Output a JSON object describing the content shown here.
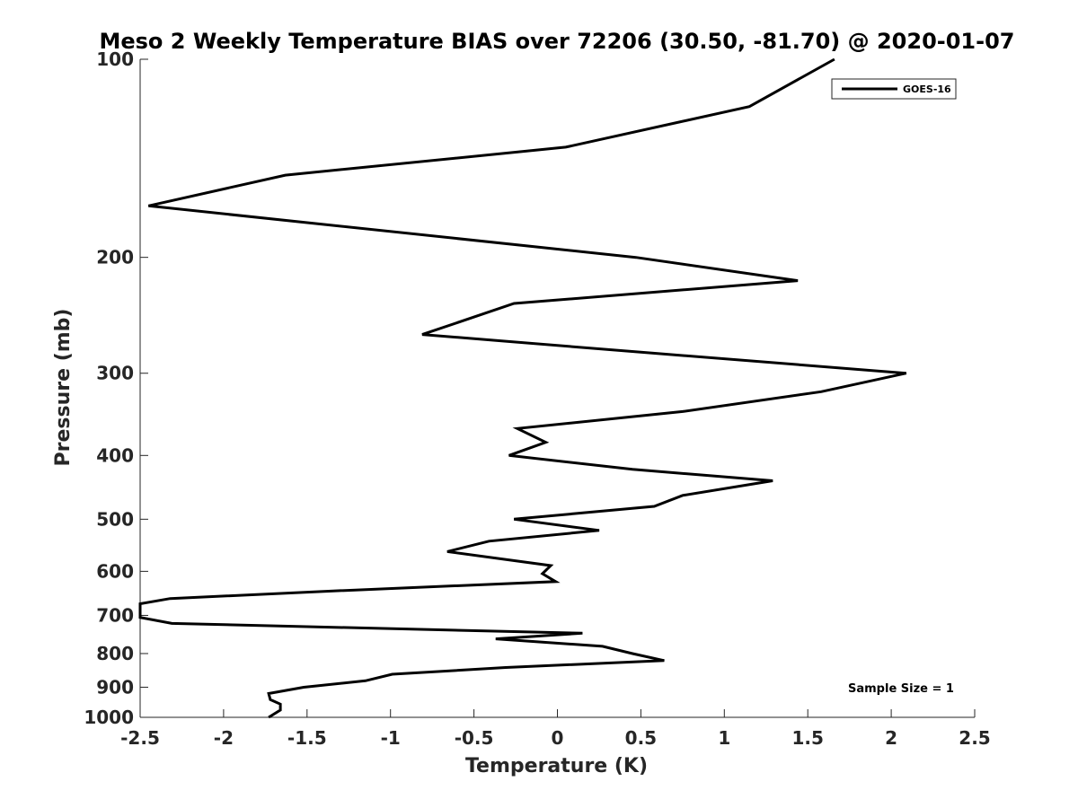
{
  "chart_data": {
    "type": "line",
    "title": "Meso 2 Weekly Temperature BIAS over 72206 (30.50, -81.70) @ 2020-01-07",
    "xlabel": "Temperature (K)",
    "ylabel": "Pressure (mb)",
    "xlim": [
      -2.5,
      2.5
    ],
    "ylim": [
      100,
      1000
    ],
    "y_scale": "log",
    "y_reversed": true,
    "x_ticks": [
      -2.5,
      -2,
      -1.5,
      -1,
      -0.5,
      0,
      0.5,
      1,
      1.5,
      2,
      2.5
    ],
    "x_tick_labels": [
      "-2.5",
      "-2",
      "-1.5",
      "-1",
      "-0.5",
      "0",
      "0.5",
      "1",
      "1.5",
      "2",
      "2.5"
    ],
    "y_ticks": [
      100,
      200,
      300,
      400,
      500,
      600,
      700,
      800,
      900,
      1000
    ],
    "y_tick_labels": [
      "100",
      "200",
      "300",
      "400",
      "500",
      "600",
      "700",
      "800",
      "900",
      "1000"
    ],
    "legend": {
      "location": "top-right",
      "entries": [
        "GOES-16"
      ]
    },
    "annotation": "Sample Size = 1",
    "series": [
      {
        "name": "GOES-16",
        "color": "#000000",
        "points": [
          {
            "t": 1.66,
            "p": 100
          },
          {
            "t": 1.15,
            "p": 118
          },
          {
            "t": 0.05,
            "p": 136
          },
          {
            "t": -1.63,
            "p": 150
          },
          {
            "t": -2.45,
            "p": 167
          },
          {
            "t": 0.47,
            "p": 200
          },
          {
            "t": 1.44,
            "p": 217
          },
          {
            "t": -0.26,
            "p": 235
          },
          {
            "t": -0.81,
            "p": 262
          },
          {
            "t": 0.6,
            "p": 280
          },
          {
            "t": 2.09,
            "p": 300
          },
          {
            "t": 1.58,
            "p": 320
          },
          {
            "t": 0.75,
            "p": 343
          },
          {
            "t": -0.24,
            "p": 364
          },
          {
            "t": -0.07,
            "p": 382
          },
          {
            "t": -0.29,
            "p": 400
          },
          {
            "t": 0.45,
            "p": 420
          },
          {
            "t": 1.29,
            "p": 437
          },
          {
            "t": 0.75,
            "p": 460
          },
          {
            "t": 0.58,
            "p": 478
          },
          {
            "t": -0.26,
            "p": 500
          },
          {
            "t": 0.25,
            "p": 520
          },
          {
            "t": -0.41,
            "p": 540
          },
          {
            "t": -0.66,
            "p": 560
          },
          {
            "t": -0.04,
            "p": 588
          },
          {
            "t": -0.09,
            "p": 605
          },
          {
            "t": -0.01,
            "p": 622
          },
          {
            "t": -1.3,
            "p": 642
          },
          {
            "t": -2.32,
            "p": 660
          },
          {
            "t": -2.5,
            "p": 672
          },
          {
            "t": -2.5,
            "p": 705
          },
          {
            "t": -2.31,
            "p": 720
          },
          {
            "t": 0.15,
            "p": 745
          },
          {
            "t": -0.37,
            "p": 760
          },
          {
            "t": 0.27,
            "p": 780
          },
          {
            "t": 0.45,
            "p": 800
          },
          {
            "t": 0.64,
            "p": 820
          },
          {
            "t": -0.31,
            "p": 840
          },
          {
            "t": -0.99,
            "p": 860
          },
          {
            "t": -1.15,
            "p": 880
          },
          {
            "t": -1.52,
            "p": 900
          },
          {
            "t": -1.73,
            "p": 920
          },
          {
            "t": -1.72,
            "p": 940
          },
          {
            "t": -1.66,
            "p": 955
          },
          {
            "t": -1.66,
            "p": 975
          },
          {
            "t": -1.73,
            "p": 1000
          }
        ]
      }
    ]
  }
}
